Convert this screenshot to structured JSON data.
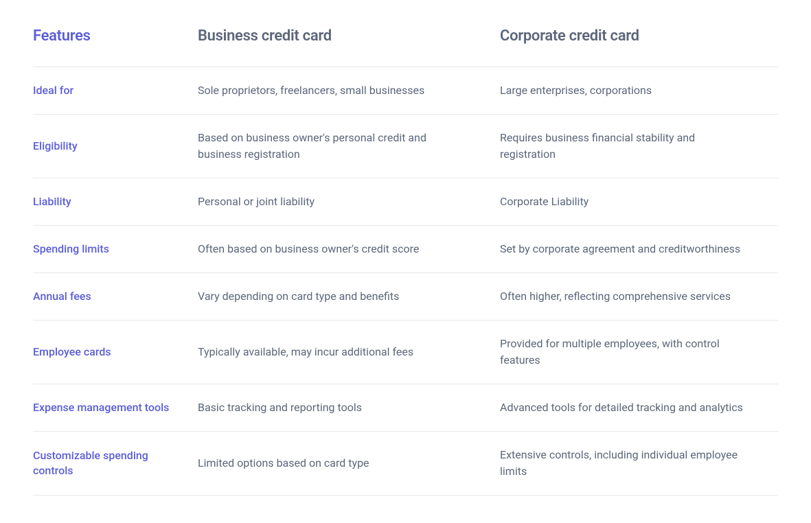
{
  "table": {
    "headers": {
      "features": "Features",
      "col1": "Business credit card",
      "col2": "Corporate credit card"
    },
    "rows": [
      {
        "feature": "Ideal for",
        "col1": "Sole proprietors, freelancers, small businesses",
        "col2": "Large enterprises, corporations"
      },
      {
        "feature": "Eligibility",
        "col1": "Based on business owner's personal credit and business registration",
        "col2": "Requires business financial stability and registration"
      },
      {
        "feature": "Liability",
        "col1": "Personal or joint liability",
        "col2": "Corporate Liability"
      },
      {
        "feature": "Spending limits",
        "col1": "Often based on business owner's credit score",
        "col2": "Set by corporate agreement and creditworthiness"
      },
      {
        "feature": "Annual fees",
        "col1": "Vary depending on card type and benefits",
        "col2": "Often higher, reflecting comprehensive services"
      },
      {
        "feature": "Employee cards",
        "col1": "Typically available, may incur additional fees",
        "col2": "Provided for multiple employees, with control features"
      },
      {
        "feature": "Expense management tools",
        "col1": "Basic tracking and reporting tools",
        "col2": "Advanced tools for detailed tracking and analytics"
      },
      {
        "feature": "Customizable spending controls",
        "col1": "Limited options based on card type",
        "col2": "Extensive controls, including individual employee limits"
      }
    ],
    "colors": {
      "accent": "#5b5ed6",
      "text": "#5b667a",
      "border": "#e6e8ed",
      "background": "#ffffff"
    }
  }
}
